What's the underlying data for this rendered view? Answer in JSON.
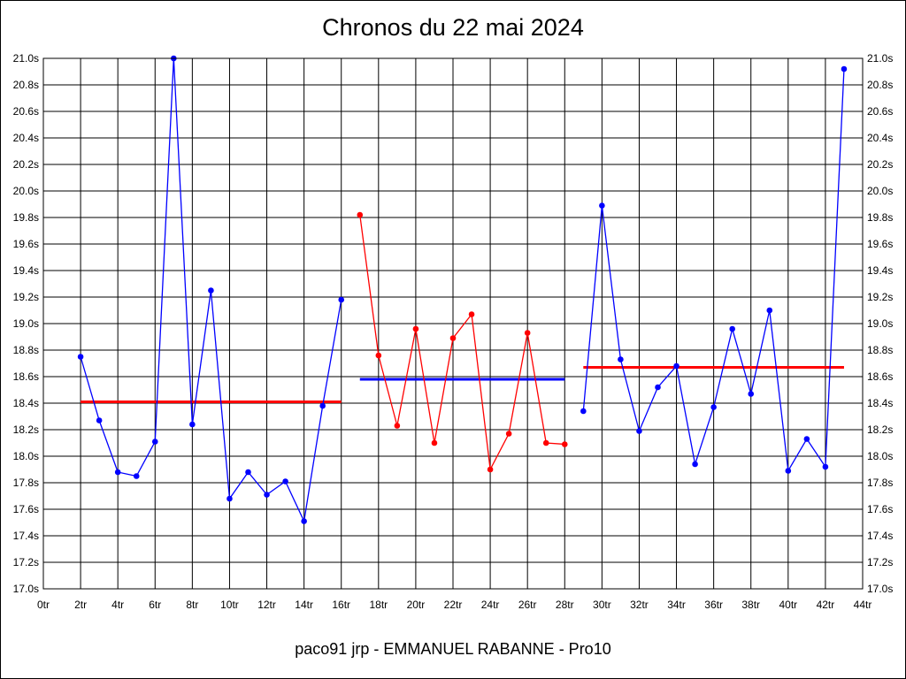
{
  "chart_data": {
    "type": "line",
    "title": "Chronos du 22 mai 2024",
    "footer": "paco91 jrp - EMMANUEL RABANNE - Pro10",
    "xlabel": "",
    "ylabel": "",
    "xlim": [
      0,
      44
    ],
    "ylim": [
      17.0,
      21.0
    ],
    "x_tick_labels": [
      "0tr",
      "2tr",
      "4tr",
      "6tr",
      "8tr",
      "10tr",
      "12tr",
      "14tr",
      "16tr",
      "18tr",
      "20tr",
      "22tr",
      "24tr",
      "26tr",
      "28tr",
      "30tr",
      "32tr",
      "34tr",
      "36tr",
      "38tr",
      "40tr",
      "42tr",
      "44tr"
    ],
    "y_tick_labels": [
      "17.0s",
      "17.2s",
      "17.4s",
      "17.6s",
      "17.8s",
      "18.0s",
      "18.2s",
      "18.4s",
      "18.6s",
      "18.8s",
      "19.0s",
      "19.2s",
      "19.4s",
      "19.6s",
      "19.8s",
      "20.0s",
      "20.2s",
      "20.4s",
      "20.6s",
      "20.8s",
      "21.0s"
    ],
    "grid": true,
    "legend": "none",
    "series": [
      {
        "color": "#0000ff",
        "x": [
          2,
          3,
          4,
          5,
          6,
          7,
          8,
          9,
          10,
          11,
          12,
          13,
          14,
          15,
          16
        ],
        "y": [
          18.75,
          18.27,
          17.88,
          17.85,
          18.11,
          21.0,
          18.24,
          19.25,
          17.68,
          17.88,
          17.71,
          17.81,
          17.51,
          18.38,
          19.18
        ]
      },
      {
        "color": "#ff0000",
        "x": [
          17,
          18,
          19,
          20,
          21,
          22,
          23,
          24,
          25,
          26,
          27,
          28
        ],
        "y": [
          19.82,
          18.76,
          18.23,
          18.96,
          18.1,
          18.89,
          19.07,
          17.9,
          18.17,
          18.93,
          18.1,
          18.09
        ]
      },
      {
        "color": "#0000ff",
        "x": [
          29,
          30,
          31,
          32,
          33,
          34,
          35,
          36,
          37,
          38,
          39,
          40,
          41,
          42,
          43
        ],
        "y": [
          18.34,
          19.89,
          18.73,
          18.19,
          18.52,
          18.68,
          17.94,
          18.37,
          18.96,
          18.47,
          19.1,
          17.89,
          18.13,
          17.92,
          20.92
        ]
      }
    ],
    "averages": [
      {
        "color": "#ff0000",
        "x_start": 2,
        "x_end": 16,
        "y": 18.41
      },
      {
        "color": "#0000ff",
        "x_start": 17,
        "x_end": 28,
        "y": 18.58
      },
      {
        "color": "#ff0000",
        "x_start": 29,
        "x_end": 43,
        "y": 18.67
      }
    ]
  }
}
